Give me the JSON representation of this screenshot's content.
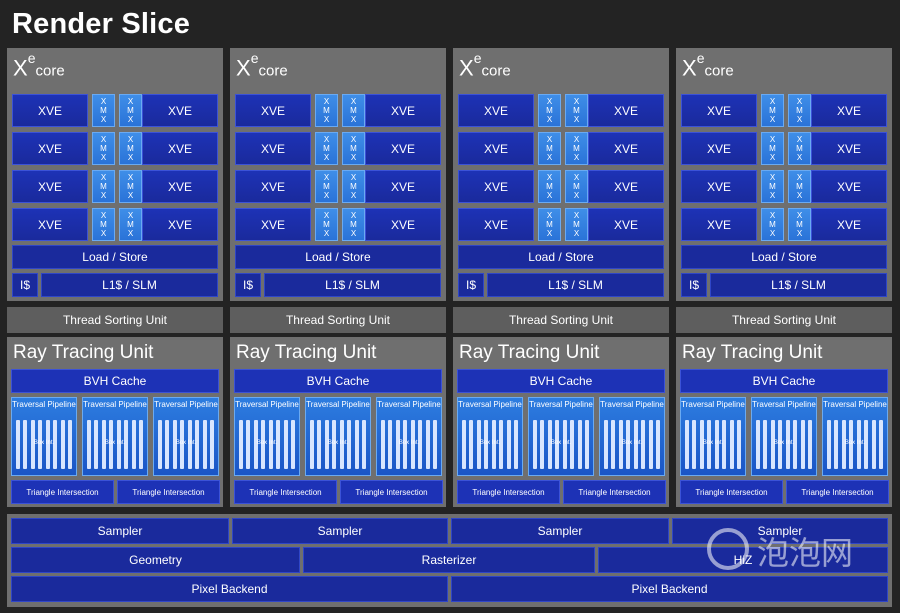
{
  "title": "Render Slice",
  "xe_core": {
    "label_main": "X",
    "label_sup": "e",
    "label_sub": "core",
    "xve_label": "XVE",
    "xmx_letters": [
      "X",
      "M",
      "X"
    ],
    "load_store": "Load / Store",
    "icache": "I$",
    "l1_slm": "L1$ / SLM"
  },
  "thread_sorting_unit": "Thread Sorting Unit",
  "ray_tracing_unit": {
    "label": "Ray Tracing Unit",
    "bvh_cache": "BVH Cache",
    "traversal_pipeline": "Traversal Pipeline",
    "box_int": "Box Int.",
    "triangle_intersection": "Triangle Intersection"
  },
  "bottom": {
    "sampler": "Sampler",
    "geometry": "Geometry",
    "rasterizer": "Rasterizer",
    "hiz": "HiZ",
    "pixel_backend": "Pixel Backend"
  },
  "watermark": {
    "text": "泡泡网"
  },
  "colors": {
    "background": "#232323",
    "panel": "#6f6f6f",
    "xve_blue": "#1d32b6",
    "xmx_blue": "#3f8ee8"
  }
}
